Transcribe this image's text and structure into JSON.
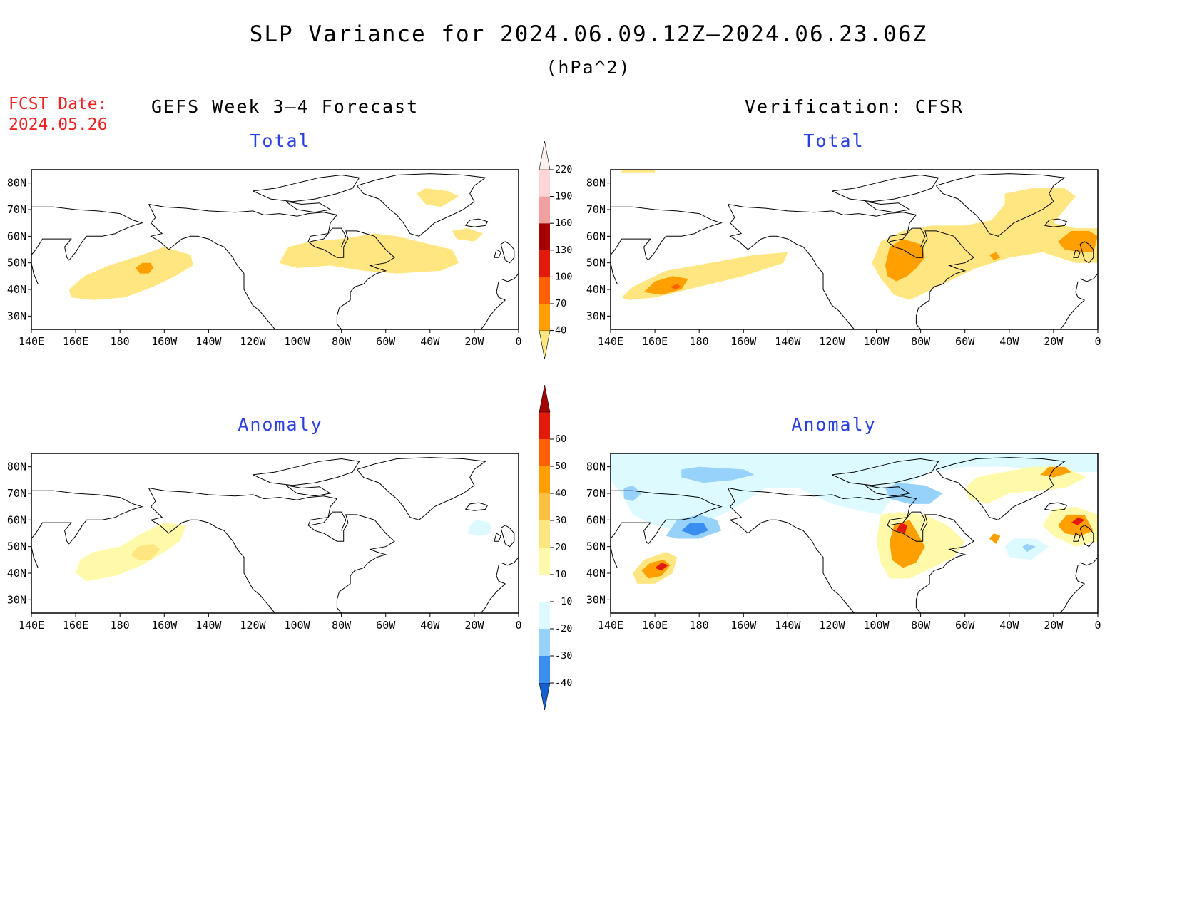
{
  "title": "SLP Variance for 2024.06.09.12Z–2024.06.23.06Z",
  "units": "(hPa^2)",
  "fcst_date": {
    "label": "FCST Date:",
    "value": "2024.05.26"
  },
  "left_header": "GEFS Week 3–4 Forecast",
  "right_header": "Verification: CFSR",
  "panels": {
    "forecast_total": {
      "title": "Total"
    },
    "forecast_anomaly": {
      "title": "Anomaly"
    },
    "verif_total": {
      "title": "Total"
    },
    "verif_anomaly": {
      "title": "Anomaly"
    }
  },
  "axes": {
    "lon_labels": [
      "140E",
      "160E",
      "180",
      "160W",
      "140W",
      "120W",
      "100W",
      "80W",
      "60W",
      "40W",
      "20W",
      "0"
    ],
    "lat_labels": [
      "80N",
      "70N",
      "60N",
      "50N",
      "40N",
      "30N"
    ],
    "lon_range": [
      "140E",
      "0"
    ],
    "lat_range": [
      25,
      85
    ]
  },
  "colorbars": {
    "total": {
      "levels": [
        "40",
        "70",
        "100",
        "130",
        "160",
        "190",
        "220"
      ],
      "colors": [
        "#ffe680",
        "#ffa000",
        "#ff6000",
        "#e11a0a",
        "#a50000",
        "#f0a0a0",
        "#ffd5d5",
        "#fff0f0"
      ]
    },
    "anomaly": {
      "levels": [
        "-40",
        "-30",
        "-20",
        "-10",
        "10",
        "20",
        "30",
        "40",
        "50",
        "60"
      ],
      "colors": [
        "#1560d0",
        "#3a8ef0",
        "#96d2fa",
        "#dcfaff",
        "#ffffff",
        "#fffaaa",
        "#ffe680",
        "#ffc040",
        "#ffa000",
        "#ff6000",
        "#e11a0a",
        "#a50000"
      ]
    }
  },
  "colors": {
    "title_text": "#000000",
    "fcst_date": "#ee2222",
    "panel_title": "#2a3fe0"
  }
}
